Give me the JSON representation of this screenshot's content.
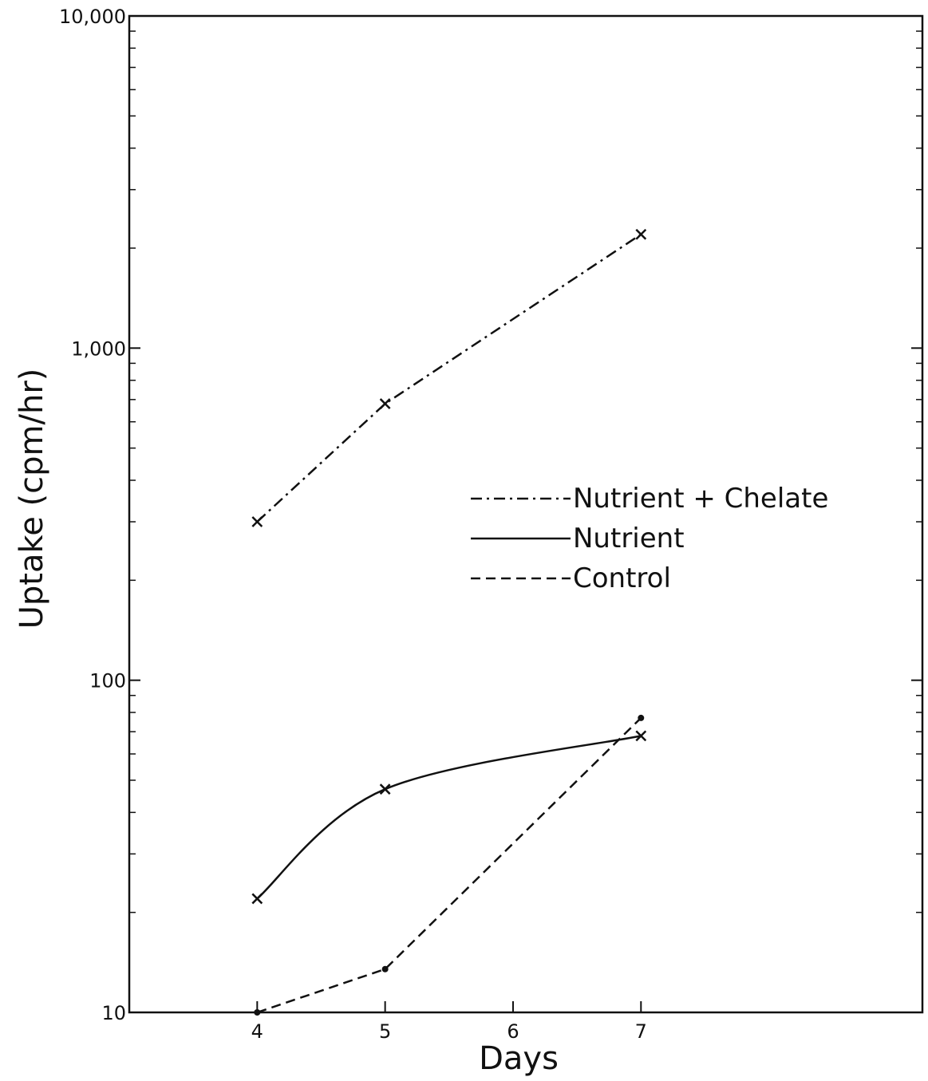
{
  "chart_data": {
    "type": "line",
    "xlabel": "Days",
    "ylabel": "Uptake (cpm/hr)",
    "yscale": "log",
    "ylim": [
      10,
      10000
    ],
    "xlim": [
      3,
      9.2
    ],
    "x_ticks": [
      4,
      5,
      6,
      7
    ],
    "x_tick_labels": [
      "4",
      "5",
      "6",
      "7"
    ],
    "y_ticks": [
      10,
      100,
      1000,
      10000
    ],
    "y_tick_labels": [
      "10",
      "100",
      "1,000",
      "10,000"
    ],
    "grid": false,
    "legend_position": "center-right",
    "series": [
      {
        "name": "Nutrient + Chelate",
        "line_style": "dash-dot",
        "marker": "x",
        "smooth": false,
        "x": [
          4,
          5,
          7
        ],
        "y": [
          300,
          680,
          2200
        ]
      },
      {
        "name": "Nutrient",
        "line_style": "solid",
        "marker": "x",
        "smooth": true,
        "x": [
          4,
          5,
          7
        ],
        "y": [
          22,
          47,
          68
        ]
      },
      {
        "name": "Control",
        "line_style": "dashed",
        "marker": "dot",
        "smooth": false,
        "x": [
          4,
          5,
          7
        ],
        "y": [
          10,
          13.5,
          77
        ]
      }
    ]
  }
}
